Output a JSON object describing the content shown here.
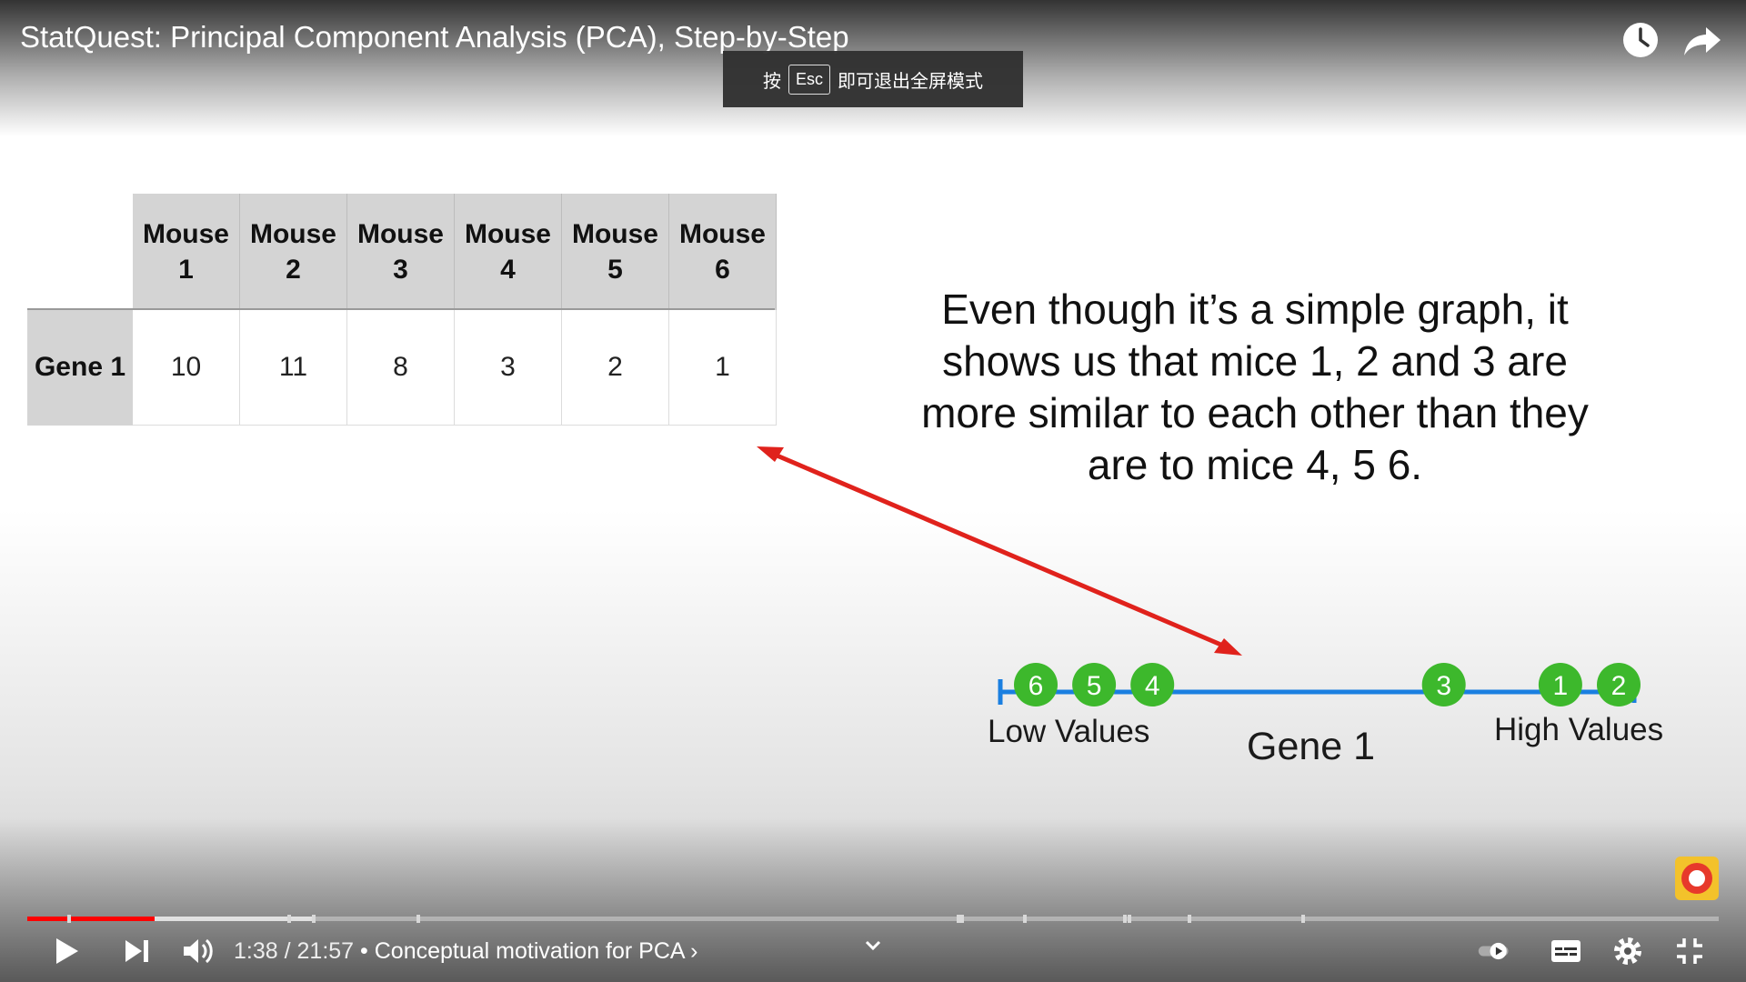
{
  "player": {
    "video_title": "StatQuest: Principal Component Analysis (PCA), Step-by-Step",
    "esc_prefix": "按",
    "esc_key": "Esc",
    "esc_suffix": "即可退出全屏模式",
    "current_time": "1:38",
    "duration": "21:57",
    "separator": " / ",
    "chapter": "• Conceptual motivation for PCA ›",
    "progress_fraction": 0.075,
    "accent": "#ff0000"
  },
  "slide": {
    "table": {
      "headers": [
        {
          "line1": "Mouse",
          "line2": "1"
        },
        {
          "line1": "Mouse",
          "line2": "2"
        },
        {
          "line1": "Mouse",
          "line2": "3"
        },
        {
          "line1": "Mouse",
          "line2": "4"
        },
        {
          "line1": "Mouse",
          "line2": "5"
        },
        {
          "line1": "Mouse",
          "line2": "6"
        }
      ],
      "row_label": "Gene 1",
      "values": [
        "10",
        "11",
        "8",
        "3",
        "2",
        "1"
      ]
    },
    "caption": "Even though it’s a simple graph, it shows us that mice 1, 2 and 3 are more similar to each other than they are to mice 4, 5 6.",
    "number_line": {
      "points": [
        {
          "label": "6",
          "value": 1
        },
        {
          "label": "5",
          "value": 2
        },
        {
          "label": "4",
          "value": 3
        },
        {
          "label": "3",
          "value": 8
        },
        {
          "label": "1",
          "value": 10
        },
        {
          "label": "2",
          "value": 11
        }
      ],
      "low_label": "Low Values",
      "high_label": "High Values",
      "axis_label": "Gene 1",
      "line_color": "#1a7fe0",
      "dot_color": "#3db82c",
      "arrow_color": "#e0221c"
    }
  }
}
